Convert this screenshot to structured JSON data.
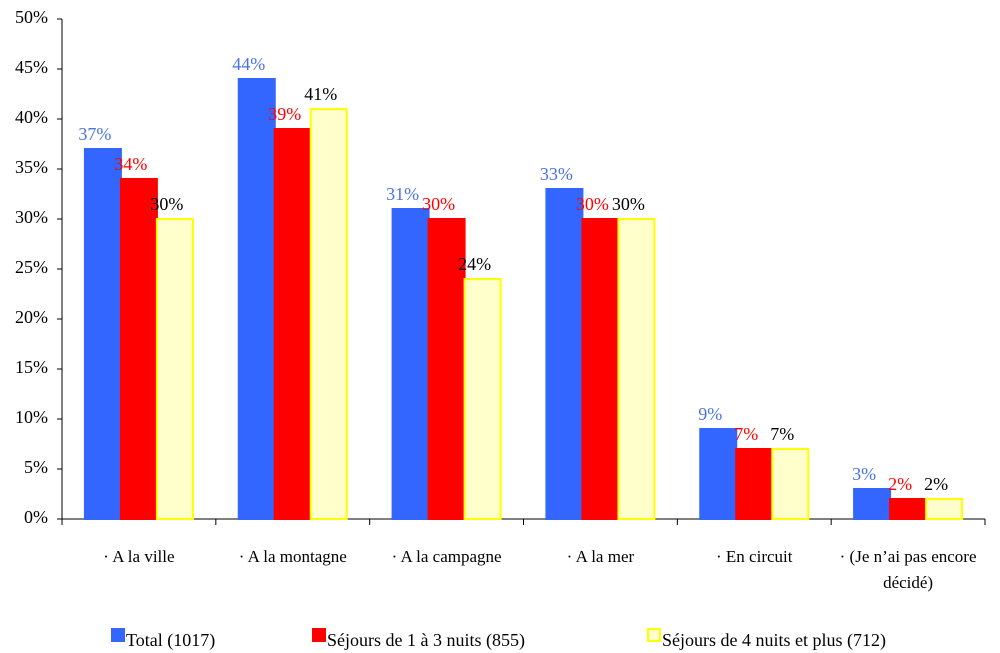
{
  "chart_data": {
    "type": "bar",
    "categories": [
      "· A la ville",
      "· A la montagne",
      "· A la campagne",
      "· A la mer",
      "· En circuit",
      "· (Je n’ai pas encore décidé)"
    ],
    "series": [
      {
        "name": "Total (1017)",
        "color": "#3366ff",
        "edge_color": "#3366ff",
        "label_color": "#4a72e8",
        "values": [
          37,
          44,
          31,
          33,
          9,
          3
        ],
        "value_labels": [
          "37%",
          "44%",
          "31%",
          "33%",
          "9%",
          "3%"
        ]
      },
      {
        "name": "Séjours de 1 à 3 nuits (855)",
        "color": "#ff0000",
        "edge_color": "#ff0000",
        "label_color": "#ff0000",
        "values": [
          34,
          39,
          30,
          30,
          7,
          2
        ],
        "value_labels": [
          "34%",
          "39%",
          "30%",
          "30%",
          "7%",
          "2%"
        ]
      },
      {
        "name": "Séjours de 4 nuits et plus (712)",
        "color": "#ffffcc",
        "edge_color": "#ffff00",
        "label_color": "#000000",
        "values": [
          30,
          41,
          24,
          30,
          7,
          2
        ],
        "value_labels": [
          "30%",
          "41%",
          "24%",
          "30%",
          "7%",
          "2%"
        ]
      }
    ],
    "ylim": [
      0,
      50
    ],
    "yticks": [
      {
        "value": 0,
        "label": "0%"
      },
      {
        "value": 5,
        "label": "5%"
      },
      {
        "value": 10,
        "label": "10%"
      },
      {
        "value": 15,
        "label": "15%"
      },
      {
        "value": 20,
        "label": "20%"
      },
      {
        "value": 25,
        "label": "25%"
      },
      {
        "value": 30,
        "label": "30%"
      },
      {
        "value": 35,
        "label": "35%"
      },
      {
        "value": 40,
        "label": "40%"
      },
      {
        "value": 45,
        "label": "45%"
      },
      {
        "value": 50,
        "label": "50%"
      }
    ],
    "grid": false
  }
}
